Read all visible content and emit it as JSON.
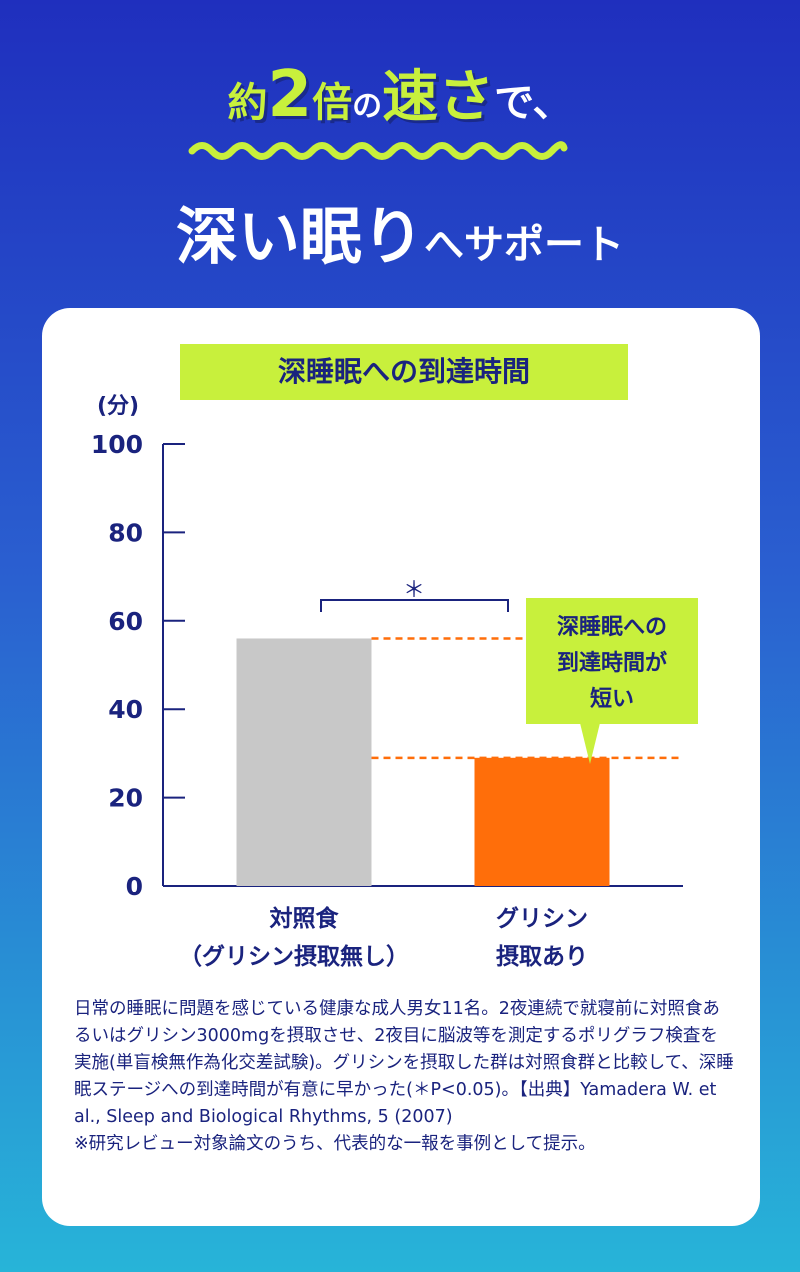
{
  "headline": {
    "part1": "約",
    "part2": "2",
    "part3": "倍",
    "part4": "の",
    "part5": "速さ",
    "part6": "で、",
    "line2_big": "深い眠り",
    "line2_small": "へサポート"
  },
  "colors": {
    "accent_lime": "#c8f03c",
    "navy": "#1a237e",
    "control_bar": "#c8c8c8",
    "glycine_bar": "#ff6e0a",
    "dash_line": "#ff6e0a"
  },
  "chart_data": {
    "type": "bar",
    "title": "深睡眠への到達時間",
    "ylabel": "(分)",
    "ylim": [
      0,
      100
    ],
    "yticks": [
      0,
      20,
      40,
      60,
      80,
      100
    ],
    "categories": [
      {
        "line1": "対照食",
        "line2": "（グリシン摂取無し）"
      },
      {
        "line1": "グリシン",
        "line2": "摂取あり"
      }
    ],
    "values": [
      56,
      29
    ],
    "significance": "＊",
    "callout": [
      "深睡眠への",
      "到達時間が",
      "短い"
    ]
  },
  "footnote": {
    "text": "日常の睡眠に問題を感じている健康な成人男女11名。2夜連続で就寝前に対照食あるいはグリシン3000mgを摂取させ、2夜目に脳波等を測定するポリグラフ検査を実施(単盲検無作為化交差試験)。グリシンを摂取した群は対照食群と比較して、深睡眠ステージへの到達時間が有意に早かった(＊P<0.05)。【出典】Yamadera W. et al., Sleep and Biological Rhythms, 5 (2007)",
    "note": "※研究レビュー対象論文のうち、代表的な一報を事例として提示。"
  }
}
